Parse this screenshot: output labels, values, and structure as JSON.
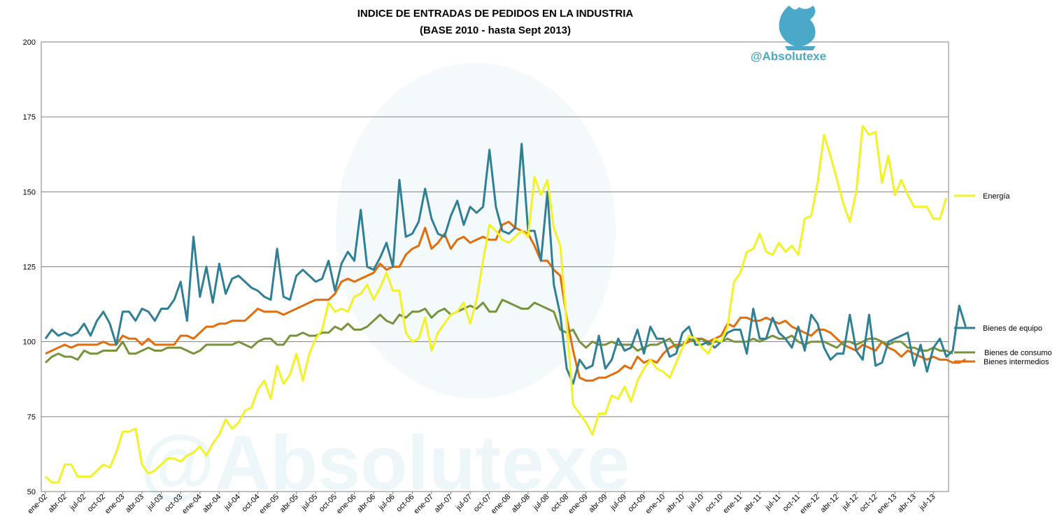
{
  "chart_data": {
    "type": "line",
    "title": "INDICE DE ENTRADAS DE PEDIDOS EN LA INDUSTRIA",
    "subtitle": "(BASE 2010 - hasta Sept 2013)",
    "xlabel": "",
    "ylabel": "",
    "ylim": [
      50,
      200
    ],
    "yticks": [
      50,
      75,
      100,
      125,
      150,
      175,
      200
    ],
    "grid": "horizontal",
    "legend_placement": "right",
    "start_month": "2002-01",
    "x_tick_labels": [
      "ene-02",
      "abr-02",
      "jul-02",
      "oct-02",
      "ene-03",
      "abr-03",
      "jul-03",
      "oct-03",
      "ene-04",
      "abr-04",
      "jul-04",
      "oct-04",
      "ene-05",
      "abr-05",
      "jul-05",
      "oct-05",
      "ene-06",
      "abr-06",
      "jul-06",
      "oct-06",
      "ene-07",
      "abr-07",
      "jul-07",
      "oct-07",
      "ene-08",
      "abr-08",
      "jul-08",
      "oct-08",
      "ene-09",
      "abr-09",
      "jul-09",
      "oct-09",
      "ene-10",
      "abr-10",
      "jul-10",
      "oct-10",
      "ene-11",
      "abr-11",
      "jul-11",
      "oct-11",
      "ene-12",
      "abr-12",
      "jul-12",
      "oct-12",
      "ene-13",
      "abr-13",
      "jul-13"
    ],
    "series": [
      {
        "name": "Energía",
        "color": "#f2f226",
        "values": [
          55,
          53,
          53,
          59,
          59,
          55,
          55,
          55,
          57,
          59,
          58,
          63,
          70,
          70,
          71,
          59,
          56,
          57,
          59,
          61,
          61,
          60,
          62,
          63,
          65,
          62,
          66,
          69,
          74,
          71,
          73,
          77,
          78,
          84,
          87,
          81,
          92,
          86,
          89,
          96,
          87,
          96,
          101,
          104,
          113,
          110,
          111,
          110,
          115,
          116,
          119,
          114,
          118,
          123,
          117,
          117,
          103,
          100,
          101,
          108,
          97,
          103,
          106,
          109,
          110,
          113,
          106,
          114,
          127,
          139,
          137,
          134,
          133,
          135,
          137,
          135,
          155,
          149,
          154,
          138,
          132,
          106,
          79,
          76,
          73,
          69,
          76,
          76,
          82,
          81,
          85,
          80,
          87,
          91,
          94,
          91,
          90,
          88,
          93,
          98,
          102,
          101,
          98,
          96,
          101,
          100,
          105,
          120,
          123,
          130,
          131,
          136,
          130,
          129,
          133,
          130,
          132,
          129,
          141,
          142,
          153,
          169,
          162,
          154,
          146,
          140,
          150,
          172,
          169,
          170,
          153,
          162,
          149,
          154,
          149,
          145,
          145,
          145,
          141,
          141,
          148
        ]
      },
      {
        "name": "Bienes de equipo",
        "color": "#2f7f96",
        "values": [
          101,
          104,
          102,
          103,
          102,
          103,
          106,
          102,
          107,
          110,
          106,
          99,
          110,
          110,
          107,
          111,
          110,
          107,
          111,
          111,
          114,
          120,
          107,
          135,
          115,
          125,
          113,
          126,
          116,
          121,
          122,
          120,
          118,
          117,
          115,
          114,
          131,
          115,
          114,
          122,
          124,
          122,
          120,
          121,
          127,
          117,
          126,
          130,
          127,
          144,
          125,
          124,
          128,
          133,
          125,
          154,
          135,
          136,
          140,
          151,
          141,
          136,
          135,
          142,
          147,
          139,
          145,
          143,
          145,
          164,
          145,
          137,
          136,
          138,
          166,
          137,
          137,
          127,
          150,
          119,
          109,
          91,
          86,
          94,
          91,
          92,
          102,
          91,
          94,
          101,
          97,
          98,
          104,
          96,
          105,
          101,
          101,
          95,
          96,
          103,
          105,
          99,
          99,
          100,
          98,
          100,
          103,
          104,
          104,
          96,
          111,
          101,
          101,
          108,
          103,
          101,
          98,
          105,
          97,
          109,
          106,
          98,
          94,
          96,
          96,
          109,
          97,
          94,
          109,
          92,
          93,
          100,
          101,
          102,
          103,
          92,
          99,
          90,
          98,
          101,
          95,
          97,
          112,
          105
        ]
      },
      {
        "name": "Bienes de consumo",
        "color": "#77933c",
        "values": [
          93,
          95,
          96,
          95,
          95,
          94,
          97,
          96,
          96,
          97,
          97,
          97,
          100,
          96,
          96,
          97,
          98,
          97,
          97,
          98,
          98,
          98,
          97,
          96,
          97,
          99,
          99,
          99,
          99,
          99,
          100,
          99,
          98,
          100,
          101,
          101,
          99,
          99,
          102,
          102,
          103,
          102,
          102,
          103,
          103,
          105,
          104,
          106,
          104,
          104,
          105,
          107,
          109,
          107,
          106,
          109,
          108,
          110,
          110,
          111,
          108,
          110,
          111,
          109,
          110,
          111,
          112,
          111,
          113,
          110,
          110,
          114,
          113,
          112,
          111,
          111,
          113,
          112,
          111,
          110,
          104,
          103,
          104,
          100,
          98,
          100,
          99,
          99,
          100,
          99,
          99,
          99,
          97,
          98,
          99,
          99,
          100,
          101,
          98,
          99,
          101,
          100,
          101,
          99,
          100,
          100,
          101,
          100,
          100,
          100,
          101,
          100,
          101,
          102,
          101,
          101,
          102,
          100,
          99,
          100,
          100,
          100,
          99,
          98,
          100,
          100,
          99,
          100,
          101,
          101,
          100,
          99,
          100,
          100,
          98,
          98,
          97,
          97,
          98,
          97,
          97,
          96
        ]
      },
      {
        "name": "Bienes intermedios",
        "color": "#e46c0a",
        "values": [
          96,
          97,
          98,
          99,
          98,
          99,
          99,
          99,
          99,
          100,
          99,
          99,
          102,
          101,
          101,
          99,
          101,
          99,
          99,
          99,
          99,
          102,
          102,
          101,
          103,
          105,
          105,
          106,
          106,
          107,
          107,
          107,
          109,
          111,
          110,
          110,
          110,
          109,
          110,
          111,
          112,
          113,
          114,
          114,
          114,
          116,
          120,
          121,
          120,
          121,
          122,
          123,
          126,
          124,
          125,
          125,
          129,
          131,
          132,
          138,
          131,
          133,
          136,
          131,
          134,
          135,
          133,
          134,
          135,
          134,
          134,
          139,
          140,
          138,
          137,
          136,
          132,
          127,
          127,
          124,
          122,
          108,
          97,
          88,
          87,
          87,
          88,
          88,
          89,
          90,
          92,
          91,
          95,
          93,
          94,
          93,
          96,
          98,
          99,
          99,
          100,
          101,
          101,
          100,
          101,
          102,
          106,
          105,
          108,
          108,
          107,
          107,
          108,
          107,
          106,
          107,
          105,
          104,
          103,
          102,
          104,
          104,
          103,
          101,
          99,
          98,
          97,
          99,
          98,
          97,
          100,
          98,
          97,
          95,
          97,
          96,
          95,
          94,
          95,
          94,
          94,
          93,
          93,
          94
        ]
      }
    ]
  },
  "watermark": {
    "handle": "@Absolutexe",
    "background_text": "@Absolutexe",
    "logo_icon": "griffin-logo-icon",
    "logo_color": "#4aa8c8"
  }
}
